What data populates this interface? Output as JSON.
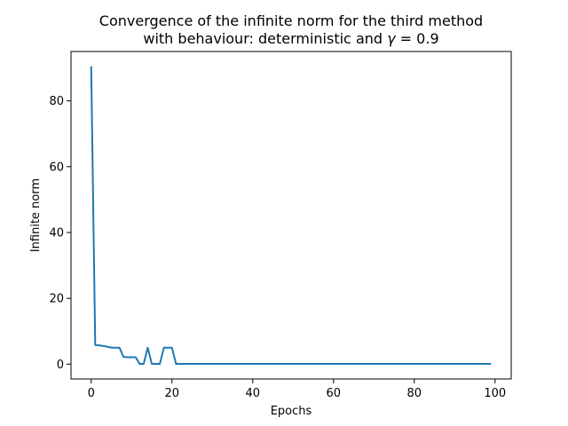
{
  "chart_data": {
    "type": "line",
    "title_line1": "Convergence of the infinite norm for the third method",
    "title_line2_prefix": "with behaviour: deterministic and ",
    "title_gamma_symbol": "γ",
    "title_gamma_value": " = 0.9",
    "xlabel": "Epochs",
    "ylabel": "Infinite norm",
    "xlim": [
      -5,
      104
    ],
    "ylim": [
      -4.5,
      95
    ],
    "xticks": [
      0,
      20,
      40,
      60,
      80,
      100
    ],
    "yticks": [
      0,
      20,
      40,
      60,
      80
    ],
    "grid": false,
    "series": [
      {
        "color": "#1f77b4",
        "x": [
          0,
          1,
          2,
          3,
          4,
          5,
          6,
          7,
          8,
          9,
          10,
          11,
          12,
          13,
          14,
          15,
          16,
          17,
          18,
          19,
          20,
          21,
          22,
          99
        ],
        "y": [
          90.5,
          5.8,
          5.7,
          5.5,
          5.3,
          5.0,
          5.0,
          5.0,
          2.2,
          2.1,
          2.1,
          2.1,
          0.1,
          0.1,
          5.0,
          0.1,
          0.1,
          0.1,
          5.0,
          5.0,
          5.0,
          0.1,
          0.1,
          0.1
        ]
      }
    ]
  }
}
